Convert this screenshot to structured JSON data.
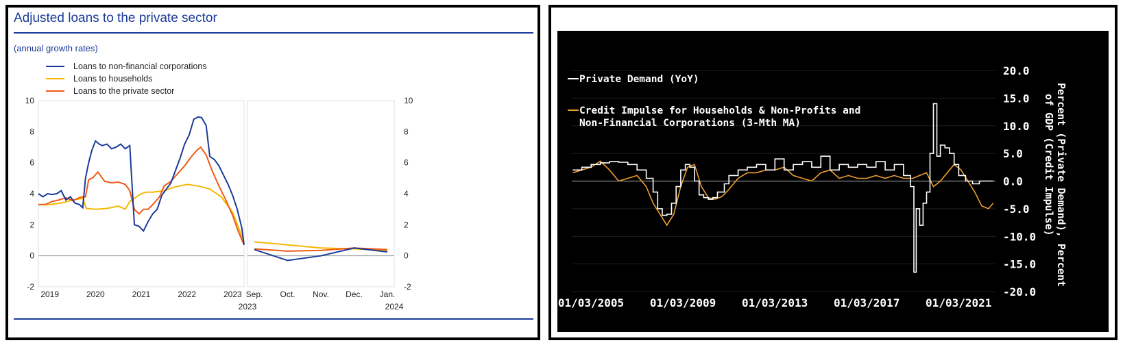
{
  "left": {
    "title": "Adjusted loans to the private sector",
    "subtitle": "(annual growth rates)",
    "colors": {
      "nfc": "#1a3a9a",
      "households": "#f5b800",
      "private": "#f05a14"
    },
    "chart_data": {
      "type": "line",
      "yticks": [
        "10",
        "8",
        "6",
        "4",
        "2",
        "0",
        "-2"
      ],
      "ylim": [
        -2,
        10
      ],
      "legend": [
        {
          "key": "nfc",
          "label": "Loans to non-financial corporations"
        },
        {
          "key": "households",
          "label": "Loans to households"
        },
        {
          "key": "private",
          "label": "Loans to the private sector"
        }
      ],
      "main_x_labels": [
        "2019",
        "2020",
        "2021",
        "2022",
        "2023"
      ],
      "main_x_range": [
        2018.75,
        2023.25
      ],
      "zoom_x_labels": [
        "Sep.",
        "Oct.",
        "Nov.",
        "Dec.",
        "Jan."
      ],
      "zoom_year_labels": [
        "2023",
        "2024"
      ],
      "main_series": {
        "nfc": {
          "x": [
            2018.75,
            2018.85,
            2018.95,
            2019.05,
            2019.15,
            2019.25,
            2019.35,
            2019.45,
            2019.55,
            2019.65,
            2019.72,
            2019.78,
            2019.85,
            2019.92,
            2020.0,
            2020.08,
            2020.15,
            2020.25,
            2020.35,
            2020.45,
            2020.55,
            2020.65,
            2020.75,
            2020.85,
            2020.95,
            2021.05,
            2021.15,
            2021.25,
            2021.35,
            2021.45,
            2021.55,
            2021.65,
            2021.75,
            2021.85,
            2021.95,
            2022.05,
            2022.15,
            2022.25,
            2022.32,
            2022.42,
            2022.5,
            2022.6,
            2022.7,
            2022.8,
            2022.9,
            2023.0,
            2023.1,
            2023.2,
            2023.25
          ],
          "y": [
            4.0,
            3.8,
            4.0,
            3.95,
            4.0,
            4.2,
            3.6,
            3.8,
            3.4,
            3.3,
            3.1,
            5.0,
            6.0,
            6.8,
            7.4,
            7.2,
            7.1,
            7.2,
            6.9,
            7.0,
            7.2,
            6.9,
            7.1,
            2.0,
            1.9,
            1.6,
            2.2,
            2.7,
            3.0,
            3.9,
            4.3,
            4.7,
            5.5,
            6.3,
            7.2,
            7.8,
            8.8,
            8.95,
            8.9,
            8.4,
            6.4,
            6.2,
            5.8,
            5.2,
            4.6,
            3.9,
            3.0,
            1.8,
            0.7
          ]
        },
        "households": {
          "x": [
            2018.75,
            2019.0,
            2019.25,
            2019.5,
            2019.72,
            2019.8,
            2020.0,
            2020.25,
            2020.5,
            2020.65,
            2020.75,
            2021.0,
            2021.1,
            2021.25,
            2021.5,
            2021.75,
            2022.0,
            2022.25,
            2022.5,
            2022.75,
            2023.0,
            2023.25
          ],
          "y": [
            3.3,
            3.3,
            3.4,
            3.6,
            3.7,
            3.05,
            3.0,
            3.05,
            3.2,
            3.0,
            3.5,
            4.0,
            4.1,
            4.1,
            4.2,
            4.45,
            4.6,
            4.5,
            4.3,
            3.8,
            2.8,
            0.9
          ]
        },
        "private": {
          "x": [
            2018.75,
            2018.9,
            2019.05,
            2019.2,
            2019.35,
            2019.5,
            2019.65,
            2019.72,
            2019.78,
            2019.85,
            2019.95,
            2020.05,
            2020.2,
            2020.35,
            2020.5,
            2020.65,
            2020.75,
            2020.85,
            2020.95,
            2021.05,
            2021.15,
            2021.25,
            2021.4,
            2021.5,
            2021.65,
            2021.8,
            2021.95,
            2022.1,
            2022.22,
            2022.3,
            2022.42,
            2022.55,
            2022.7,
            2022.85,
            2023.0,
            2023.12,
            2023.25
          ],
          "y": [
            3.3,
            3.3,
            3.5,
            3.6,
            3.75,
            3.55,
            3.75,
            3.8,
            3.8,
            4.9,
            5.05,
            5.4,
            4.8,
            4.7,
            4.75,
            4.6,
            4.2,
            3.0,
            2.7,
            3.0,
            3.0,
            3.3,
            3.8,
            4.5,
            4.8,
            5.3,
            5.8,
            6.4,
            6.8,
            7.0,
            6.5,
            5.5,
            4.5,
            3.6,
            2.6,
            1.6,
            0.7
          ]
        }
      },
      "zoom_series": {
        "nfc": {
          "x": [
            0,
            1,
            2,
            3,
            4
          ],
          "y": [
            0.4,
            -0.3,
            0.0,
            0.5,
            0.25
          ]
        },
        "households": {
          "x": [
            0,
            1,
            2,
            3,
            4
          ],
          "y": [
            0.9,
            0.7,
            0.5,
            0.45,
            0.35
          ]
        },
        "private": {
          "x": [
            0,
            1,
            2,
            3,
            4
          ],
          "y": [
            0.45,
            0.3,
            0.35,
            0.5,
            0.4
          ]
        }
      }
    }
  },
  "right": {
    "colors": {
      "bg": "#000000",
      "demand": "#ffffff",
      "impulse": "#f0a030",
      "grid": "#202020"
    },
    "chart_data": {
      "type": "line",
      "legend": [
        {
          "key": "demand",
          "label": "Private Demand (YoY)",
          "lines": [
            "Private Demand (YoY)"
          ]
        },
        {
          "key": "impulse",
          "label": "Credit Impulse for Households & Non-Profits and Non-Financial Corporations (3-Mth MA)",
          "lines": [
            "Credit Impulse for Households & Non-Profits and",
            "Non-Financial Corporations (3-Mth MA)"
          ]
        }
      ],
      "ylabel_lines": [
        "Percent (Private Demand), Percent",
        "of GDP (Credit Impulse)"
      ],
      "yticks": [
        "20.0",
        "15.0",
        "10.0",
        "5.0",
        "0.0",
        "-5.0",
        "-10.0",
        "-15.0",
        "-20.0"
      ],
      "ylim": [
        -20,
        20
      ],
      "x_labels": [
        "01/03/2005",
        "01/03/2009",
        "01/03/2013",
        "01/03/2017",
        "01/03/2021"
      ],
      "xlim": [
        2005.16,
        2023.6
      ],
      "series": {
        "demand": {
          "x": [
            2005.2,
            2005.6,
            2006.0,
            2006.4,
            2006.8,
            2007.2,
            2007.6,
            2008.0,
            2008.4,
            2008.7,
            2008.9,
            2009.1,
            2009.3,
            2009.5,
            2009.7,
            2009.9,
            2010.1,
            2010.3,
            2010.5,
            2010.7,
            2010.9,
            2011.1,
            2011.3,
            2011.5,
            2011.8,
            2012.0,
            2012.4,
            2012.8,
            2013.2,
            2013.6,
            2014.0,
            2014.4,
            2014.8,
            2015.2,
            2015.6,
            2016.0,
            2016.4,
            2016.8,
            2017.2,
            2017.6,
            2018.0,
            2018.4,
            2018.8,
            2019.2,
            2019.6,
            2019.9,
            2020.05,
            2020.15,
            2020.3,
            2020.45,
            2020.6,
            2020.75,
            2020.9,
            2021.05,
            2021.2,
            2021.4,
            2021.6,
            2021.8,
            2022.0,
            2022.3,
            2022.6,
            2022.9,
            2023.2,
            2023.5
          ],
          "y": [
            2.0,
            2.5,
            3.0,
            3.3,
            3.5,
            3.4,
            3.0,
            2.0,
            0.5,
            -2.0,
            -5.0,
            -6.2,
            -6.0,
            -4.0,
            -1.0,
            2.0,
            3.0,
            2.5,
            0.0,
            -2.5,
            -3.0,
            -3.3,
            -3.0,
            -2.0,
            -0.5,
            1.0,
            2.0,
            2.5,
            3.0,
            2.0,
            4.0,
            2.0,
            3.0,
            3.5,
            2.5,
            4.5,
            2.0,
            3.0,
            2.5,
            3.0,
            2.5,
            3.5,
            2.0,
            3.0,
            1.0,
            -1.0,
            -16.5,
            -5.0,
            -8.0,
            -4.0,
            -2.0,
            5.0,
            14.0,
            4.5,
            6.5,
            6.0,
            5.0,
            3.0,
            1.0,
            0.0,
            -0.5,
            0.0,
            0.0,
            0.0
          ]
        },
        "impulse": {
          "x": [
            2005.2,
            2005.6,
            2006.0,
            2006.4,
            2006.8,
            2007.2,
            2007.6,
            2008.0,
            2008.4,
            2008.7,
            2009.0,
            2009.3,
            2009.6,
            2009.9,
            2010.2,
            2010.5,
            2010.8,
            2011.1,
            2011.4,
            2011.7,
            2012.0,
            2012.4,
            2012.8,
            2013.2,
            2013.6,
            2014.0,
            2014.4,
            2014.8,
            2015.2,
            2015.6,
            2016.0,
            2016.4,
            2016.8,
            2017.2,
            2017.6,
            2018.0,
            2018.4,
            2018.8,
            2019.2,
            2019.6,
            2020.0,
            2020.3,
            2020.6,
            2020.9,
            2021.2,
            2021.5,
            2021.8,
            2022.1,
            2022.4,
            2022.7,
            2023.0,
            2023.3,
            2023.5
          ],
          "y": [
            1.5,
            2.0,
            2.5,
            3.6,
            2.0,
            0.0,
            0.5,
            1.0,
            -1.0,
            -4.0,
            -6.0,
            -8.0,
            -6.0,
            -1.0,
            2.5,
            3.0,
            -1.0,
            -3.0,
            -3.3,
            -2.8,
            -1.5,
            0.5,
            1.5,
            1.5,
            2.0,
            2.0,
            2.5,
            1.0,
            0.5,
            0.0,
            1.5,
            2.0,
            0.5,
            1.0,
            0.5,
            0.5,
            1.0,
            0.5,
            1.0,
            0.5,
            0.5,
            1.0,
            1.5,
            -1.0,
            0.0,
            1.5,
            3.0,
            2.0,
            0.0,
            -2.0,
            -4.5,
            -5.0,
            -4.0
          ]
        }
      }
    }
  }
}
